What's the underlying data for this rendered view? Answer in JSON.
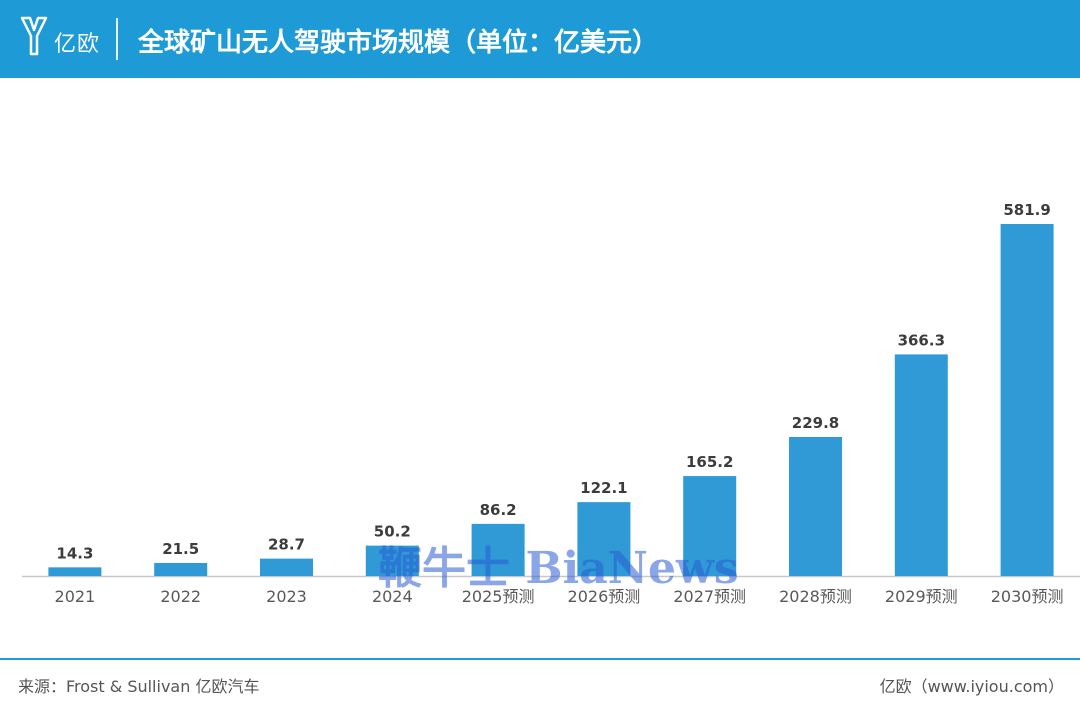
{
  "header": {
    "logo_text": "亿欧",
    "title": "全球矿山无人驾驶市场规模（单位：亿美元）",
    "background_color": "#1e9ad6"
  },
  "chart_data": {
    "type": "bar",
    "title": "全球矿山无人驾驶市场规模（单位：亿美元）",
    "categories": [
      "2021",
      "2022",
      "2023",
      "2024",
      "2025预测",
      "2026预测",
      "2027预测",
      "2028预测",
      "2029预测",
      "2030预测"
    ],
    "values": [
      14.3,
      21.5,
      28.7,
      50.2,
      86.2,
      122.1,
      165.2,
      229.8,
      366.3,
      581.9
    ],
    "value_labels": [
      "14.3",
      "21.5",
      "28.7",
      "50.2",
      "86.2",
      "122.1",
      "165.2",
      "229.8",
      "366.3",
      "581.9"
    ],
    "ylim": [
      0,
      581.9
    ],
    "bar_color": "#2f9ad5",
    "grid": false,
    "legend": "none"
  },
  "watermark": "鞭牛士 BiaNews",
  "footer": {
    "source": "来源：Frost & Sullivan 亿欧汽车",
    "site": "亿欧（www.iyiou.com）"
  }
}
